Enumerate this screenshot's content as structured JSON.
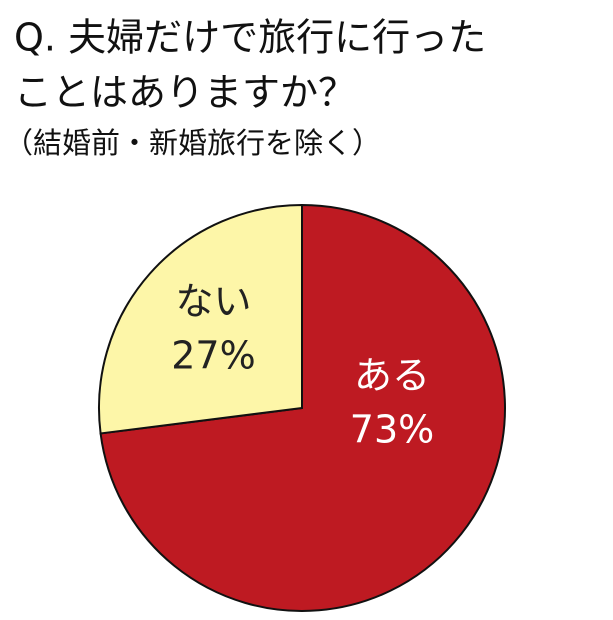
{
  "chart_data": {
    "type": "pie",
    "title": [
      "Q. 夫婦だけで旅行に行った",
      "ことはありますか？"
    ],
    "subtitle": "（結婚前・新婚旅行を除く）",
    "categories": [
      "ある",
      "ない"
    ],
    "values": [
      73,
      27
    ],
    "value_labels": [
      "73%",
      "27%"
    ],
    "colors": [
      "#be1a22",
      "#fdf6a8"
    ],
    "label_colors": [
      "#ffffff",
      "#222222"
    ]
  }
}
